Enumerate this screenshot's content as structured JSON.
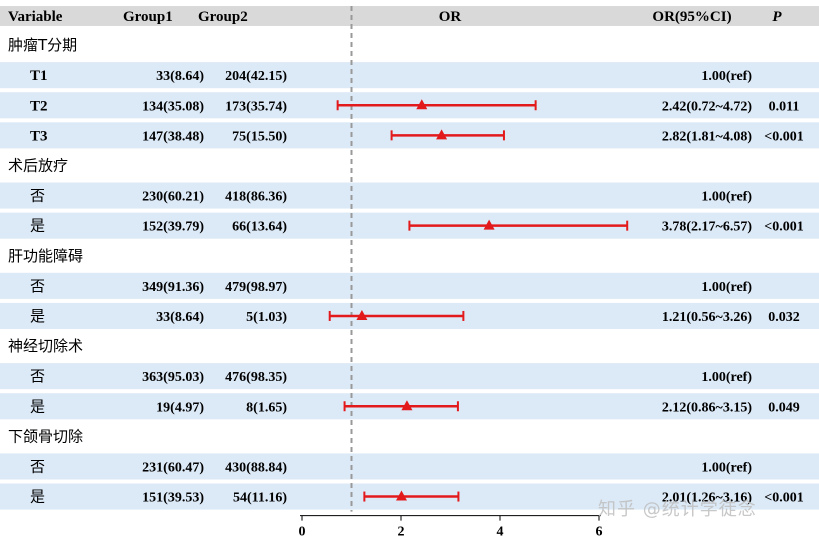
{
  "header": {
    "variable": "Variable",
    "group1": "Group1",
    "group2": "Group2",
    "or": "OR",
    "ci": "OR(95%CI)",
    "p": "P"
  },
  "watermark": "知乎 @统计学徒念",
  "chart_data": {
    "type": "forest",
    "reference_line": 1,
    "xlim": [
      0,
      6.5
    ],
    "xticks": [
      0,
      2,
      4,
      6
    ],
    "marker_color": "#e31a1c",
    "reference_color": "#999999",
    "stripe_color": "#dce9f6",
    "header_color": "#d9d9d9",
    "rows": [
      {
        "kind": "group",
        "label": "肿瘤T分期"
      },
      {
        "kind": "item",
        "label": "T1",
        "g1": "33(8.64)",
        "g2": "204(42.15)",
        "ci_text": "1.00(ref)",
        "p": ""
      },
      {
        "kind": "item",
        "label": "T2",
        "g1": "134(35.08)",
        "g2": "173(35.74)",
        "ci_text": "2.42(0.72~4.72)",
        "p": "0.011",
        "or": 2.42,
        "lo": 0.72,
        "hi": 4.72
      },
      {
        "kind": "item",
        "label": "T3",
        "g1": "147(38.48)",
        "g2": "75(15.50)",
        "ci_text": "2.82(1.81~4.08)",
        "p": "<0.001",
        "or": 2.82,
        "lo": 1.81,
        "hi": 4.08
      },
      {
        "kind": "group",
        "label": "术后放疗"
      },
      {
        "kind": "item",
        "label": "否",
        "g1": "230(60.21)",
        "g2": "418(86.36)",
        "ci_text": "1.00(ref)",
        "p": ""
      },
      {
        "kind": "item",
        "label": "是",
        "g1": "152(39.79)",
        "g2": "66(13.64)",
        "ci_text": "3.78(2.17~6.57)",
        "p": "<0.001",
        "or": 3.78,
        "lo": 2.17,
        "hi": 6.57
      },
      {
        "kind": "group",
        "label": "肝功能障碍"
      },
      {
        "kind": "item",
        "label": "否",
        "g1": "349(91.36)",
        "g2": "479(98.97)",
        "ci_text": "1.00(ref)",
        "p": ""
      },
      {
        "kind": "item",
        "label": "是",
        "g1": "33(8.64)",
        "g2": "5(1.03)",
        "ci_text": "1.21(0.56~3.26)",
        "p": "0.032",
        "or": 1.21,
        "lo": 0.56,
        "hi": 3.26
      },
      {
        "kind": "group",
        "label": "神经切除术"
      },
      {
        "kind": "item",
        "label": "否",
        "g1": "363(95.03)",
        "g2": "476(98.35)",
        "ci_text": "1.00(ref)",
        "p": ""
      },
      {
        "kind": "item",
        "label": "是",
        "g1": "19(4.97)",
        "g2": "8(1.65)",
        "ci_text": "2.12(0.86~3.15)",
        "p": "0.049",
        "or": 2.12,
        "lo": 0.86,
        "hi": 3.15
      },
      {
        "kind": "group",
        "label": "下颌骨切除"
      },
      {
        "kind": "item",
        "label": "否",
        "g1": "231(60.47)",
        "g2": "430(88.84)",
        "ci_text": "1.00(ref)",
        "p": ""
      },
      {
        "kind": "item",
        "label": "是",
        "g1": "151(39.53)",
        "g2": "54(11.16)",
        "ci_text": "2.01(1.26~3.16)",
        "p": "<0.001",
        "or": 2.01,
        "lo": 1.26,
        "hi": 3.16
      }
    ]
  }
}
